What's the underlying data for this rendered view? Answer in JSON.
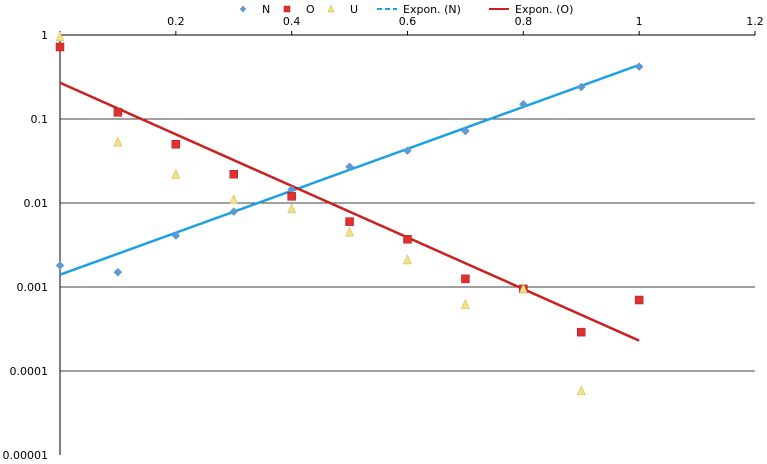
{
  "chart_data": {
    "type": "scatter",
    "xlim": [
      0,
      1.2
    ],
    "ylim": [
      1e-05,
      1
    ],
    "yscale": "log",
    "x_ticks": [
      "0.2",
      "0.4",
      "0.6",
      "0.8",
      "1",
      "1.2"
    ],
    "y_ticks": [
      "1",
      "0.1",
      "0.01",
      "0.001",
      "0.0001",
      "0.00001"
    ],
    "grid": "horizontal",
    "legend_position": "top",
    "series": [
      {
        "name": "N",
        "color": "#5b9bd5",
        "marker": "diamond",
        "x": [
          0,
          0.1,
          0.2,
          0.3,
          0.4,
          0.5,
          0.6,
          0.7,
          0.8,
          0.9,
          1.0
        ],
        "y": [
          0.0018,
          0.0015,
          0.0041,
          0.0079,
          0.0145,
          0.027,
          0.042,
          0.072,
          0.15,
          0.24,
          0.42
        ]
      },
      {
        "name": "O",
        "color": "#e03030",
        "marker": "square",
        "x": [
          0,
          0.1,
          0.2,
          0.3,
          0.4,
          0.5,
          0.6,
          0.7,
          0.8,
          0.9,
          1.0
        ],
        "y": [
          0.72,
          0.12,
          0.05,
          0.022,
          0.012,
          0.006,
          0.0037,
          0.00125,
          0.00095,
          0.00029,
          0.0007
        ]
      },
      {
        "name": "U",
        "color": "#f5e27a",
        "marker": "triangle",
        "x": [
          0,
          0.1,
          0.2,
          0.3,
          0.4,
          0.5,
          0.6,
          0.7,
          0.8,
          0.9
        ],
        "y": [
          0.95,
          0.053,
          0.022,
          0.011,
          0.0085,
          0.0045,
          0.0021,
          0.00062,
          0.00095,
          5.8e-05
        ]
      }
    ],
    "trendlines": [
      {
        "name": "Expon. (N)",
        "color": "#1ba1e2",
        "style": "dashed",
        "x": [
          0,
          1.0
        ],
        "y": [
          0.0014,
          0.44
        ]
      },
      {
        "name": "Expon. (O)",
        "color": "#cc1f1f",
        "style": "solid",
        "x": [
          0,
          1.0
        ],
        "y": [
          0.27,
          0.00023
        ]
      }
    ]
  }
}
